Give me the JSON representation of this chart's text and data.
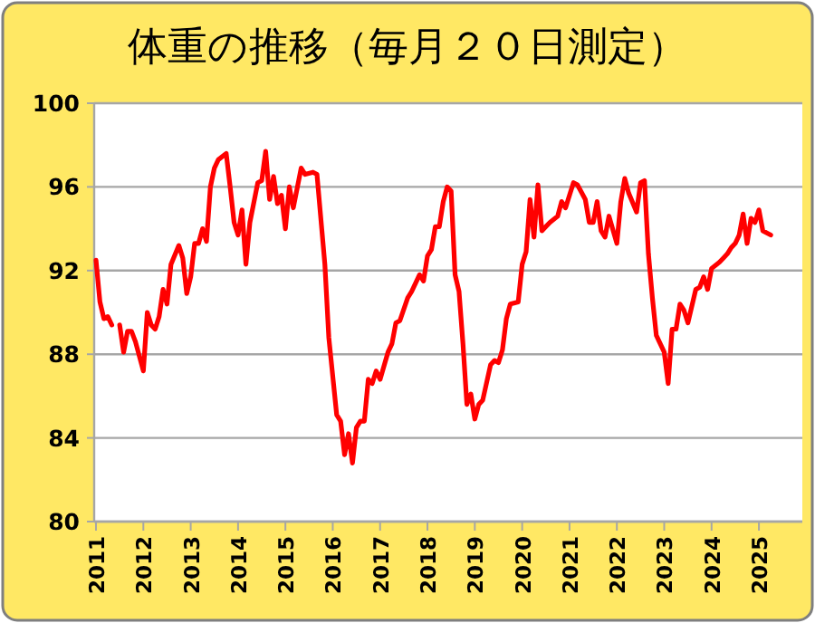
{
  "chart_data": {
    "type": "line",
    "title": "体重の推移（毎月２０日測定）",
    "x": [
      "2011-01",
      "2011-02",
      "2011-03",
      "2011-04",
      "2011-05",
      "2011-06",
      "2011-07",
      "2011-08",
      "2011-09",
      "2011-10",
      "2011-11",
      "2012-01",
      "2012-02",
      "2012-03",
      "2012-04",
      "2012-05",
      "2012-06",
      "2012-07",
      "2012-08",
      "2012-10",
      "2012-11",
      "2012-12",
      "2013-01",
      "2013-02",
      "2013-03",
      "2013-04",
      "2013-05",
      "2013-06",
      "2013-07",
      "2013-08",
      "2013-10",
      "2013-11",
      "2013-12",
      "2014-01",
      "2014-02",
      "2014-03",
      "2014-04",
      "2014-06",
      "2014-07",
      "2014-08",
      "2014-09",
      "2014-10",
      "2014-11",
      "2014-12",
      "2015-01",
      "2015-02",
      "2015-03",
      "2015-05",
      "2015-06",
      "2015-08",
      "2015-09",
      "2015-11",
      "2015-12",
      "2016-02",
      "2016-03",
      "2016-04",
      "2016-05",
      "2016-06",
      "2016-07",
      "2016-08",
      "2016-09",
      "2016-10",
      "2016-11",
      "2016-12",
      "2017-01",
      "2017-03",
      "2017-04",
      "2017-05",
      "2017-06",
      "2017-08",
      "2017-09",
      "2017-11",
      "2017-12",
      "2018-01",
      "2018-02",
      "2018-03",
      "2018-04",
      "2018-05",
      "2018-06",
      "2018-07",
      "2018-08",
      "2018-09",
      "2018-10",
      "2018-11",
      "2018-12",
      "2019-01",
      "2019-02",
      "2019-03",
      "2019-05",
      "2019-06",
      "2019-07",
      "2019-08",
      "2019-09",
      "2019-10",
      "2019-12",
      "2020-01",
      "2020-02",
      "2020-03",
      "2020-04",
      "2020-05",
      "2020-06",
      "2020-08",
      "2020-10",
      "2020-11",
      "2020-12",
      "2021-02",
      "2021-03",
      "2021-05",
      "2021-06",
      "2021-07",
      "2021-08",
      "2021-09",
      "2021-10",
      "2021-11",
      "2022-01",
      "2022-02",
      "2022-03",
      "2022-04",
      "2022-06",
      "2022-07",
      "2022-08",
      "2022-09",
      "2022-10",
      "2022-11",
      "2022-12",
      "2023-01",
      "2023-02",
      "2023-03",
      "2023-04",
      "2023-05",
      "2023-06",
      "2023-07",
      "2023-09",
      "2023-10",
      "2023-11",
      "2023-12",
      "2024-01",
      "2024-03",
      "2024-04",
      "2024-05",
      "2024-06",
      "2024-07",
      "2024-08",
      "2024-09",
      "2024-10",
      "2024-11",
      "2024-12",
      "2025-01",
      "2025-02",
      "2025-03",
      "2025-04"
    ],
    "series": [
      {
        "color": "#ff0000",
        "values": [
          92.5,
          90.5,
          89.7,
          89.8,
          89.4,
          null,
          89.4,
          88.1,
          89.1,
          89.1,
          88.6,
          87.2,
          90.0,
          89.4,
          89.2,
          89.8,
          91.1,
          90.4,
          92.3,
          93.2,
          92.6,
          90.9,
          91.7,
          93.3,
          93.3,
          94.0,
          93.4,
          96.0,
          96.9,
          97.3,
          97.6,
          96.0,
          94.3,
          93.7,
          94.9,
          92.3,
          94.3,
          96.2,
          96.3,
          97.7,
          95.4,
          96.5,
          95.2,
          95.6,
          94.0,
          96.0,
          95.0,
          96.9,
          96.6,
          96.7,
          96.6,
          92.3,
          88.8,
          85.1,
          84.8,
          83.2,
          84.2,
          82.8,
          84.5,
          84.8,
          84.8,
          86.8,
          86.6,
          87.2,
          86.8,
          88.1,
          88.5,
          89.5,
          89.6,
          90.7,
          91.0,
          91.8,
          91.5,
          92.7,
          93.0,
          94.1,
          94.1,
          95.3,
          96.0,
          95.8,
          91.8,
          91.0,
          88.5,
          85.6,
          86.1,
          84.9,
          85.6,
          85.8,
          87.5,
          87.7,
          87.6,
          88.2,
          89.7,
          90.4,
          90.5,
          92.3,
          92.9,
          95.4,
          93.6,
          96.1,
          93.9,
          94.3,
          94.6,
          95.3,
          95.0,
          96.2,
          96.1,
          95.4,
          94.3,
          94.3,
          95.3,
          93.9,
          93.6,
          94.6,
          93.3,
          95.3,
          96.4,
          95.7,
          94.8,
          96.2,
          96.3,
          92.8,
          90.7,
          88.9,
          88.5,
          88.1,
          86.6,
          89.2,
          89.2,
          90.4,
          90.1,
          89.5,
          91.1,
          91.2,
          91.7,
          91.1,
          92.1,
          92.4,
          92.6,
          92.8,
          93.1,
          93.3,
          93.7,
          94.7,
          93.3,
          94.5,
          94.3,
          94.9,
          93.9,
          93.8,
          93.7
        ]
      }
    ],
    "xlim": [
      "2011-01",
      "2025-12"
    ],
    "xticks": [
      {
        "value": "2011-01",
        "label": "2011"
      },
      {
        "value": "2012-01",
        "label": "2012"
      },
      {
        "value": "2013-01",
        "label": "2013"
      },
      {
        "value": "2014-01",
        "label": "2014"
      },
      {
        "value": "2015-01",
        "label": "2015"
      },
      {
        "value": "2016-01",
        "label": "2016"
      },
      {
        "value": "2017-01",
        "label": "2017"
      },
      {
        "value": "2018-01",
        "label": "2018"
      },
      {
        "value": "2019-01",
        "label": "2019"
      },
      {
        "value": "2020-01",
        "label": "2020"
      },
      {
        "value": "2021-01",
        "label": "2021"
      },
      {
        "value": "2022-01",
        "label": "2022"
      },
      {
        "value": "2023-01",
        "label": "2023"
      },
      {
        "value": "2024-01",
        "label": "2024"
      },
      {
        "value": "2025-01",
        "label": "2025"
      }
    ],
    "ylim": [
      80,
      100
    ],
    "yticks": [
      80,
      84,
      88,
      92,
      96,
      100
    ],
    "grid": "y"
  }
}
